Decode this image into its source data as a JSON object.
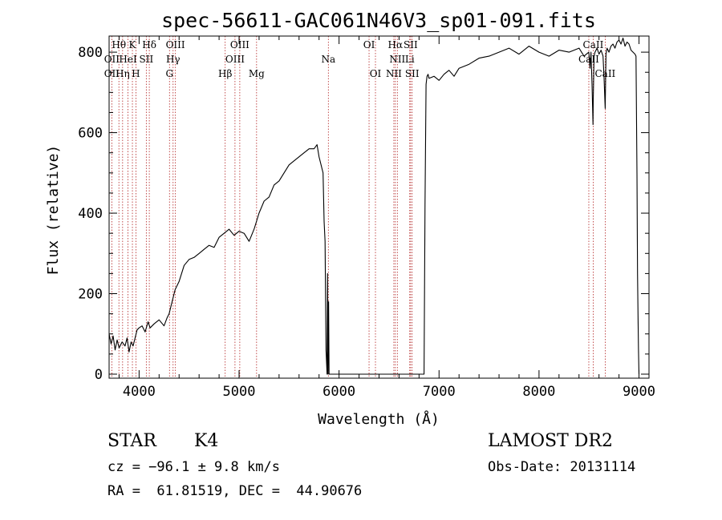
{
  "chart_data": {
    "type": "line",
    "title": "spec-56611-GAC061N46V3_sp01-091.fits",
    "xlabel": "Wavelength (Å)",
    "ylabel": "Flux (relative)",
    "xlim": [
      3700,
      9100
    ],
    "ylim": [
      -10,
      840
    ],
    "xticks": [
      4000,
      5000,
      6000,
      7000,
      8000,
      9000
    ],
    "yticks": [
      0,
      200,
      400,
      600,
      800
    ],
    "grid": false,
    "series": [
      {
        "x": [
          3700,
          3720,
          3740,
          3760,
          3780,
          3800,
          3830,
          3860,
          3880,
          3900,
          3920,
          3940,
          3960,
          3980,
          4000,
          4030,
          4060,
          4090,
          4110,
          4150,
          4200,
          4250,
          4280,
          4300,
          4330,
          4360,
          4400,
          4450,
          4500,
          4550,
          4600,
          4650,
          4700,
          4750,
          4800,
          4850,
          4900,
          4950,
          5000,
          5050,
          5100,
          5150,
          5200,
          5250,
          5300,
          5350,
          5400,
          5450,
          5500,
          5550,
          5600,
          5650,
          5700,
          5750,
          5780,
          5800,
          5820,
          5840,
          5850,
          5860,
          5870,
          5880,
          5885,
          5890,
          5895,
          5900,
          5910,
          5950,
          6000,
          6100,
          6200,
          6300,
          6400,
          6500,
          6600,
          6700,
          6800,
          6850,
          6860,
          6870,
          6880,
          6890,
          6900,
          6950,
          7000,
          7050,
          7100,
          7150,
          7200,
          7300,
          7400,
          7500,
          7600,
          7700,
          7800,
          7850,
          7900,
          8000,
          8100,
          8200,
          8300,
          8400,
          8450,
          8498,
          8510,
          8520,
          8530,
          8540,
          8542,
          8550,
          8560,
          8580,
          8600,
          8620,
          8640,
          8650,
          8662,
          8670,
          8680,
          8700,
          8720,
          8740,
          8760,
          8780,
          8800,
          8820,
          8840,
          8860,
          8880,
          8900,
          8920,
          8940,
          8960,
          8970,
          8980,
          8985,
          8990,
          8995,
          9000
        ],
        "y": [
          100,
          75,
          95,
          60,
          85,
          65,
          80,
          70,
          90,
          55,
          80,
          70,
          90,
          110,
          115,
          120,
          105,
          130,
          115,
          125,
          135,
          120,
          140,
          150,
          180,
          210,
          230,
          270,
          285,
          290,
          300,
          310,
          320,
          315,
          340,
          350,
          360,
          345,
          355,
          350,
          330,
          360,
          400,
          430,
          440,
          470,
          480,
          500,
          520,
          530,
          540,
          550,
          560,
          560,
          570,
          540,
          520,
          500,
          380,
          330,
          60,
          0,
          250,
          0,
          180,
          0,
          0,
          0,
          0,
          0,
          0,
          0,
          0,
          0,
          0,
          0,
          0,
          0,
          420,
          720,
          740,
          745,
          735,
          740,
          730,
          745,
          755,
          740,
          760,
          770,
          785,
          790,
          800,
          810,
          795,
          805,
          815,
          800,
          790,
          805,
          800,
          810,
          790,
          800,
          760,
          800,
          720,
          620,
          680,
          790,
          800,
          810,
          795,
          805,
          790,
          740,
          660,
          795,
          810,
          800,
          815,
          820,
          810,
          825,
          830,
          820,
          835,
          815,
          825,
          820,
          805,
          800,
          795,
          790,
          500,
          250,
          150,
          60,
          0
        ]
      }
    ],
    "line_labels": [
      {
        "text": "Hθ",
        "x": 3798,
        "row": 0
      },
      {
        "text": "OII",
        "x": 3727,
        "row": 1
      },
      {
        "text": "OII",
        "x": 3727,
        "row": 2
      },
      {
        "text": "K",
        "x": 3933,
        "row": 0
      },
      {
        "text": "HeI",
        "x": 3889,
        "row": 1
      },
      {
        "text": "Hη",
        "x": 3835,
        "row": 2
      },
      {
        "text": "Hδ",
        "x": 4102,
        "row": 0
      },
      {
        "text": "SII",
        "x": 4072,
        "row": 1
      },
      {
        "text": "H",
        "x": 3968,
        "row": 2
      },
      {
        "text": "OIII",
        "x": 4363,
        "row": 0
      },
      {
        "text": "Hγ",
        "x": 4340,
        "row": 1
      },
      {
        "text": "G",
        "x": 4304,
        "row": 2
      },
      {
        "text": "OIII",
        "x": 5007,
        "row": 0
      },
      {
        "text": "OIII",
        "x": 4959,
        "row": 1
      },
      {
        "text": "Hβ",
        "x": 4861,
        "row": 2
      },
      {
        "text": "Mg",
        "x": 5175,
        "row": 2
      },
      {
        "text": "Na",
        "x": 5893,
        "row": 1
      },
      {
        "text": "OI",
        "x": 6300,
        "row": 0
      },
      {
        "text": "OI",
        "x": 6364,
        "row": 2
      },
      {
        "text": "Hα",
        "x": 6563,
        "row": 0
      },
      {
        "text": "SII",
        "x": 6716,
        "row": 0
      },
      {
        "text": "NII",
        "x": 6583,
        "row": 1
      },
      {
        "text": "Li",
        "x": 6707,
        "row": 1
      },
      {
        "text": "NII",
        "x": 6548,
        "row": 2
      },
      {
        "text": "SII",
        "x": 6731,
        "row": 2
      },
      {
        "text": "CaII",
        "x": 8542,
        "row": 0
      },
      {
        "text": "CaII",
        "x": 8498,
        "row": 1
      },
      {
        "text": "CaII",
        "x": 8662,
        "row": 2
      }
    ],
    "marker_lines": [
      3727,
      3798,
      3835,
      3889,
      3933,
      3968,
      4072,
      4102,
      4304,
      4340,
      4363,
      4861,
      4959,
      5007,
      5175,
      5893,
      6300,
      6364,
      6548,
      6563,
      6583,
      6707,
      6716,
      6731,
      8498,
      8542,
      8662
    ]
  },
  "info": {
    "object_class": "STAR",
    "subclass": "K4",
    "cz": "cz = −96.1 ± 9.8 km/s",
    "coords": "RA =  61.81519, DEC =  44.90676",
    "survey": "LAMOST DR2",
    "obs_date": "Obs-Date: 20131114"
  }
}
